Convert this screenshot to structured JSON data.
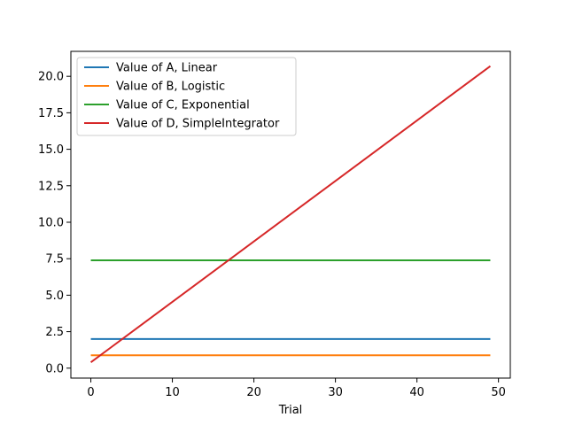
{
  "chart_data": {
    "type": "line",
    "title": "",
    "xlabel": "Trial",
    "ylabel": "",
    "xlim": [
      -2.45,
      51.45
    ],
    "ylim": [
      -0.68,
      21.71
    ],
    "xticks": [
      0,
      10,
      20,
      30,
      40,
      50
    ],
    "xtick_labels": [
      "0",
      "10",
      "20",
      "30",
      "40",
      "50"
    ],
    "yticks": [
      0.0,
      2.5,
      5.0,
      7.5,
      10.0,
      12.5,
      15.0,
      17.5,
      20.0
    ],
    "ytick_labels": [
      "0.0",
      "2.5",
      "5.0",
      "7.5",
      "10.0",
      "12.5",
      "15.0",
      "17.5",
      "20.0"
    ],
    "grid": false,
    "legend_position": "top-left",
    "series": [
      {
        "name": "Value of A, Linear",
        "color": "#1f77b4",
        "x": [
          0,
          49
        ],
        "y": [
          2.0,
          2.0
        ]
      },
      {
        "name": "Value of B, Logistic",
        "color": "#ff7f0e",
        "x": [
          0,
          49
        ],
        "y": [
          0.88,
          0.88
        ]
      },
      {
        "name": "Value of C, Exponential",
        "color": "#2ca02c",
        "x": [
          0,
          49
        ],
        "y": [
          7.39,
          7.39
        ]
      },
      {
        "name": "Value of D, SimpleIntegrator",
        "color": "#d62728",
        "x": [
          0,
          49
        ],
        "y": [
          0.4,
          20.7
        ]
      }
    ]
  }
}
